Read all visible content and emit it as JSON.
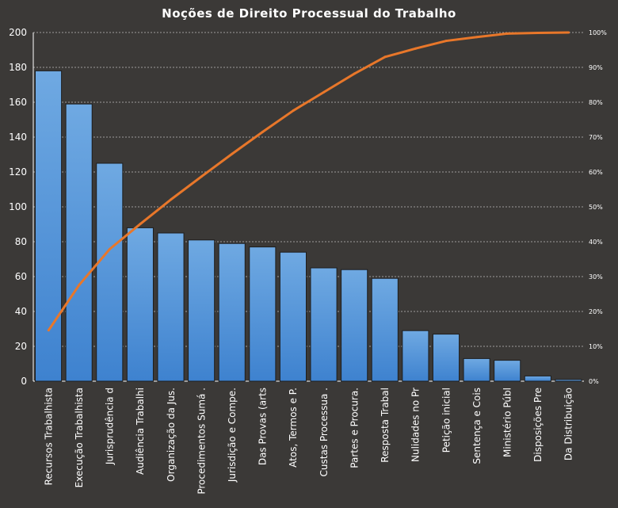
{
  "chart_data": {
    "type": "bar",
    "title": "Noções de Direito  Processual  do Trabalho",
    "categories": [
      "Recursos Trabalhista",
      "Execução Trabalhista",
      "Jurisprudência d",
      "Audiência Trabalhi",
      "Organização da Jus.",
      "Procedimentos  Sumá .",
      "Jurisdição e Compe.",
      "Das Provas (arts",
      "Atos, Termos e P.",
      "Custas Processua .",
      "Partes e Procura.",
      "Resposta Trabal",
      "Nulidades no Pr",
      "Petição inicial",
      "Sentença e Cois",
      "Ministério Públ",
      "Disposições Pre",
      "Da Distribuição"
    ],
    "values": [
      178,
      159,
      125,
      88,
      85,
      81,
      79,
      77,
      74,
      65,
      64,
      59,
      29,
      27,
      13,
      12,
      3,
      1
    ],
    "cumulative_line": {
      "type": "line",
      "axis": "right",
      "values_percent": [
        14.6,
        27.6,
        37.9,
        45.1,
        52.1,
        58.7,
        65.2,
        71.5,
        77.6,
        82.9,
        88.2,
        93.0,
        95.4,
        97.6,
        98.7,
        99.7,
        99.9,
        100
      ]
    },
    "ylim": [
      0,
      200
    ],
    "yticks": [
      "0",
      "20",
      "40",
      "60",
      "80",
      "100",
      "120",
      "140",
      "160",
      "180",
      "200"
    ],
    "y2lim": [
      0,
      100
    ],
    "y2ticks": [
      "0%",
      "10%",
      "20%",
      "30%",
      "40%",
      "50%",
      "60%",
      "70%",
      "80%",
      "90%",
      "100%"
    ],
    "grid": true,
    "colors": {
      "bar": "#4a8fd8",
      "line": "#e8772a",
      "background": "#3b3937"
    }
  }
}
